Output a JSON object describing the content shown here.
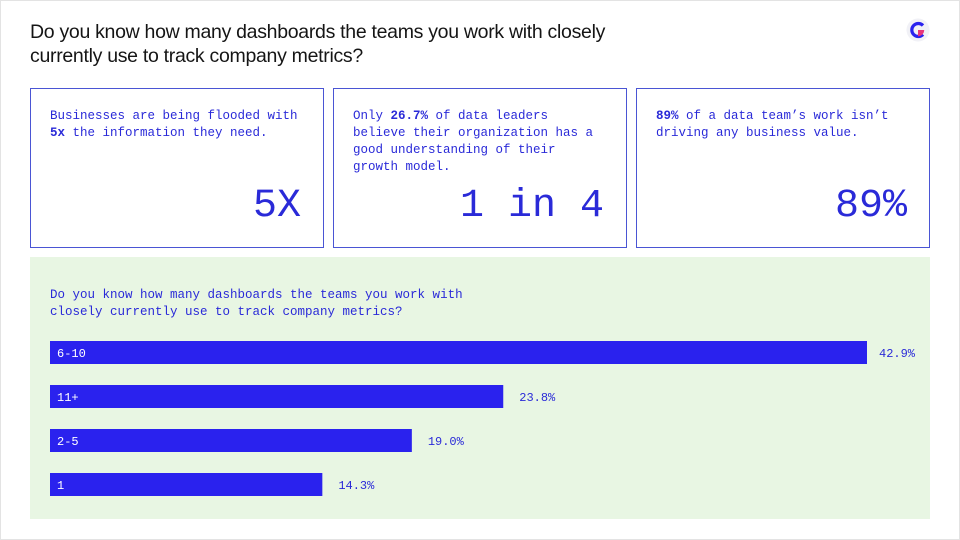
{
  "header": {
    "title": "Do you know how many dashboards the teams you work with closely currently use to track company metrics?",
    "logo": "c-logo-icon"
  },
  "cards": [
    {
      "pre": "Businesses are being flooded with ",
      "bold": "5x",
      "post": " the information they need.",
      "stat": "5X"
    },
    {
      "pre": "Only ",
      "bold": "26.7%",
      "post": " of data leaders believe their organization has a good understanding of their growth model.",
      "stat": "1 in 4"
    },
    {
      "pre": "",
      "bold": "89%",
      "post": " of a data team’s work isn’t driving any business value.",
      "stat": "89%"
    }
  ],
  "colors": {
    "accent": "#2a22ee",
    "text_accent": "#2a2ad8",
    "panel_bg": "#e8f6e3",
    "card_border": "#4a55d4"
  },
  "chart_data": {
    "type": "bar",
    "orientation": "horizontal",
    "title": "Do you know how many dashboards the teams you work with closely currently use to track company metrics?",
    "categories": [
      "6-10",
      "11+",
      "2-5",
      "1"
    ],
    "values": [
      42.9,
      23.8,
      19.0,
      14.3
    ],
    "value_labels": [
      "42.9%",
      "23.8%",
      "19.0%",
      "14.3%"
    ],
    "xlabel": "",
    "ylabel": "",
    "grid": false
  }
}
